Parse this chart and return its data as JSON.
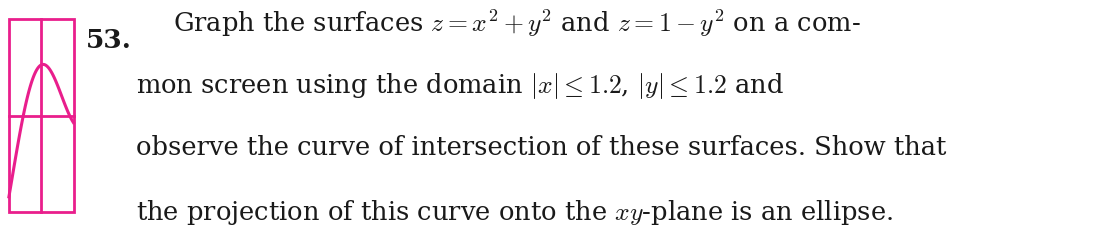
{
  "problem_number": "53.",
  "icon_color": "#E91E8C",
  "background_color": "#ffffff",
  "text_color": "#1a1a1a",
  "line1": "Graph the surfaces $z = x^2 + y^2$ and $z = 1 - y^2$ on a com-",
  "line2": "mon screen using the domain $|x| \\leq 1.2$, $|y| \\leq 1.2$ and",
  "line3": "observe the curve of intersection of these surfaces. Show that",
  "line4": "the projection of this curve onto the $xy$-plane is an ellipse.",
  "fontsize_number": 19,
  "fontsize_text": 18.5,
  "icon_color_hex": "#E91E8C"
}
